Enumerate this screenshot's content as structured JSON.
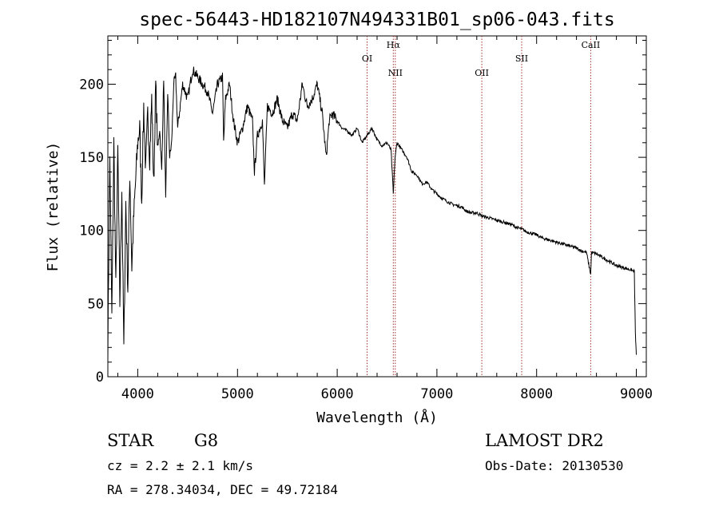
{
  "chart_data": {
    "type": "line",
    "title": "spec-56443-HD182107N494331B01_sp06-043.fits",
    "xlabel": "Wavelength (Å)",
    "ylabel": "Flux (relative)",
    "xlim": [
      3700,
      9100
    ],
    "ylim": [
      0,
      233
    ],
    "xticks": [
      4000,
      5000,
      6000,
      7000,
      8000,
      9000
    ],
    "yticks": [
      0,
      50,
      100,
      150,
      200
    ],
    "grid": false,
    "legend": "none",
    "series": [
      {
        "x": [
          3700,
          3720,
          3740,
          3760,
          3780,
          3800,
          3820,
          3840,
          3860,
          3880,
          3900,
          3920,
          3940,
          3960,
          3980,
          4000,
          4020,
          4040,
          4060,
          4080,
          4100,
          4120,
          4140,
          4160,
          4180,
          4200,
          4220,
          4240,
          4260,
          4280,
          4300,
          4320,
          4340,
          4360,
          4380,
          4400,
          4450,
          4500,
          4550,
          4600,
          4650,
          4700,
          4750,
          4800,
          4850,
          4861,
          4880,
          4920,
          4960,
          5000,
          5050,
          5100,
          5150,
          5170,
          5200,
          5250,
          5270,
          5300,
          5350,
          5400,
          5450,
          5500,
          5550,
          5600,
          5650,
          5700,
          5750,
          5800,
          5850,
          5890,
          5920,
          5950,
          6000,
          6050,
          6100,
          6150,
          6200,
          6250,
          6300,
          6350,
          6400,
          6450,
          6500,
          6540,
          6563,
          6580,
          6600,
          6650,
          6700,
          6750,
          6800,
          6850,
          6900,
          6950,
          7000,
          7050,
          7100,
          7150,
          7200,
          7250,
          7300,
          7350,
          7400,
          7450,
          7500,
          7550,
          7600,
          7650,
          7700,
          7750,
          7800,
          7850,
          7900,
          7950,
          8000,
          8050,
          8100,
          8150,
          8200,
          8250,
          8300,
          8350,
          8400,
          8450,
          8500,
          8542,
          8550,
          8600,
          8650,
          8700,
          8750,
          8800,
          8850,
          8900,
          8950,
          8980,
          8990,
          9000
        ],
        "y": [
          20,
          150,
          40,
          160,
          60,
          155,
          50,
          130,
          18,
          120,
          60,
          140,
          75,
          110,
          135,
          160,
          170,
          120,
          185,
          140,
          180,
          150,
          190,
          130,
          200,
          155,
          170,
          140,
          205,
          120,
          195,
          150,
          160,
          200,
          205,
          170,
          200,
          190,
          210,
          205,
          200,
          195,
          180,
          200,
          205,
          160,
          190,
          200,
          175,
          160,
          170,
          185,
          175,
          140,
          165,
          175,
          130,
          185,
          180,
          190,
          175,
          170,
          180,
          175,
          200,
          185,
          190,
          200,
          180,
          150,
          175,
          180,
          175,
          170,
          168,
          165,
          170,
          160,
          165,
          170,
          162,
          158,
          160,
          155,
          125,
          150,
          160,
          155,
          150,
          140,
          138,
          132,
          133,
          128,
          125,
          122,
          120,
          118,
          117,
          116,
          113,
          112,
          112,
          110,
          109,
          108,
          107,
          106,
          105,
          104,
          102,
          101,
          99,
          98,
          97,
          95,
          94,
          93,
          92,
          91,
          90,
          89,
          88,
          86,
          85,
          70,
          85,
          84,
          82,
          80,
          78,
          76,
          75,
          74,
          73,
          72,
          30,
          15
        ]
      }
    ],
    "lines": [
      {
        "label": "OI",
        "x": 6300,
        "level": "low"
      },
      {
        "label": "Hα",
        "x": 6563,
        "level": "high"
      },
      {
        "label": "NII",
        "x": 6583,
        "level": "mid"
      },
      {
        "label": "OII",
        "x": 7450,
        "level": "mid"
      },
      {
        "label": "SII",
        "x": 7850,
        "level": "low"
      },
      {
        "label": "CaII",
        "x": 8542,
        "level": "high"
      }
    ]
  },
  "info": {
    "object_type": "STAR",
    "subclass": "G8",
    "survey": "LAMOST DR2",
    "cz": "cz = 2.2 ± 2.1 km/s",
    "obs_date": "Obs-Date: 20130530",
    "radec": "RA = 278.34034, DEC =  49.72184"
  }
}
